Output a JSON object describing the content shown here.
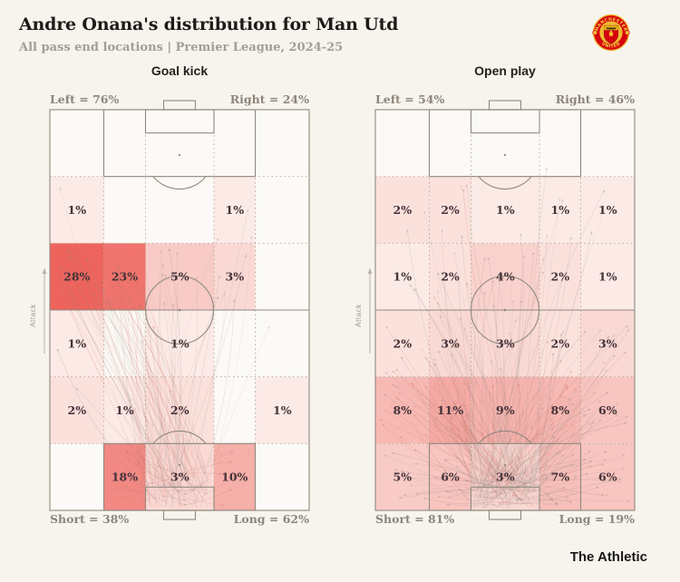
{
  "header": {
    "title": "Andre Onana's distribution for Man Utd",
    "subtitle": "All pass end locations | Premier League, 2024-25"
  },
  "branding": {
    "footer_brand": "The Athletic",
    "crest": {
      "icon": "manchester-united-crest",
      "top_text": "MANCHESTER",
      "bottom_text": "UNITED"
    }
  },
  "colors": {
    "page_bg": "#f7f4ed",
    "pitch_bg": "#fcfaf6",
    "pitch_line": "#8f897f",
    "grid_dots": "#b5aea3",
    "heat_low": "#fdf9f5",
    "heat_high": "#ee645d",
    "value_text": "#45333a",
    "edge_label": "#8c857c",
    "title_text": "#1d1b19",
    "subtitle_text": "#a39d95",
    "crest_red": "#d6020e",
    "crest_gold": "#eebc33"
  },
  "chart_data": [
    {
      "type": "heatmap",
      "title": "Goal kick",
      "pitch": "vertical-football-pitch",
      "attack_label": "Attack",
      "top_left_label": "Left = 76%",
      "top_right_label": "Right = 24%",
      "bottom_left_label": "Short = 38%",
      "bottom_right_label": "Long = 62%",
      "rows": 6,
      "cols": 5,
      "zone_percentages": [
        [
          0,
          0,
          0,
          0,
          0
        ],
        [
          1,
          0,
          0,
          1,
          0
        ],
        [
          28,
          23,
          5,
          3,
          0
        ],
        [
          1,
          0,
          1,
          0,
          0
        ],
        [
          2,
          1,
          2,
          0,
          1
        ],
        [
          0,
          18,
          3,
          10,
          0
        ]
      ]
    },
    {
      "type": "heatmap",
      "title": "Open play",
      "pitch": "vertical-football-pitch",
      "attack_label": "Attack",
      "top_left_label": "Left = 54%",
      "top_right_label": "Right = 46%",
      "bottom_left_label": "Short = 81%",
      "bottom_right_label": "Long = 19%",
      "rows": 6,
      "cols": 5,
      "zone_percentages": [
        [
          0,
          0,
          0,
          0,
          0
        ],
        [
          2,
          2,
          1,
          1,
          1
        ],
        [
          1,
          2,
          4,
          2,
          1
        ],
        [
          2,
          3,
          3,
          2,
          3
        ],
        [
          8,
          11,
          9,
          8,
          6
        ],
        [
          5,
          6,
          3,
          7,
          6
        ]
      ]
    }
  ]
}
